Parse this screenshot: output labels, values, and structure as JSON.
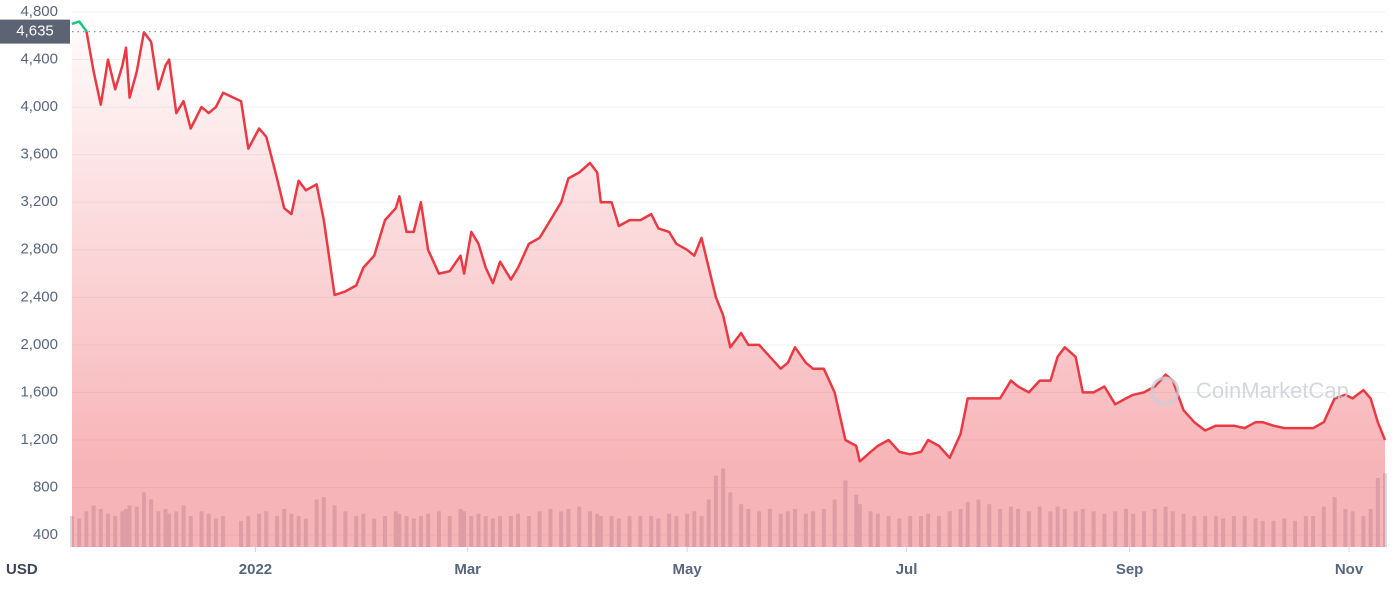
{
  "chart_data": {
    "type": "line",
    "currency_label": "USD",
    "watermark": "CoinMarketCap",
    "reference": {
      "value": 4635,
      "label": "4,635"
    },
    "xlim": [
      0,
      365
    ],
    "xticks": [
      {
        "value": 51,
        "label": "2022"
      },
      {
        "value": 110,
        "label": "Mar"
      },
      {
        "value": 171,
        "label": "May"
      },
      {
        "value": 232,
        "label": "Jul"
      },
      {
        "value": 294,
        "label": "Sep"
      },
      {
        "value": 355,
        "label": "Nov"
      }
    ],
    "ylim": [
      300,
      4800
    ],
    "yticks": [
      400,
      800,
      {
        "value": 1200,
        "label": "1,200"
      },
      {
        "value": 1600,
        "label": "1,600"
      },
      {
        "value": 2000,
        "label": "2,000"
      },
      {
        "value": 2400,
        "label": "2,400"
      },
      {
        "value": 2800,
        "label": "2,800"
      },
      {
        "value": 3200,
        "label": "3,200"
      },
      {
        "value": 3600,
        "label": "3,600"
      },
      {
        "value": 4000,
        "label": "4,000"
      },
      {
        "value": 4400,
        "label": "4,400"
      },
      {
        "value": 4800,
        "label": "4,800"
      }
    ],
    "grid": true,
    "color_below": "#ea3943",
    "color_above": "#16c784",
    "volume_color": "#d7dadf",
    "x": [
      0,
      2,
      4,
      6,
      8,
      10,
      12,
      14,
      15,
      16,
      18,
      20,
      22,
      24,
      26,
      27,
      29,
      31,
      33,
      36,
      38,
      40,
      42,
      47,
      49,
      52,
      54,
      57,
      59,
      61,
      63,
      65,
      68,
      70,
      73,
      76,
      79,
      81,
      84,
      87,
      90,
      91,
      93,
      95,
      97,
      99,
      102,
      105,
      108,
      109,
      111,
      113,
      115,
      117,
      119,
      122,
      124,
      127,
      130,
      133,
      136,
      138,
      141,
      144,
      146,
      147,
      150,
      152,
      155,
      158,
      161,
      163,
      166,
      168,
      171,
      173,
      175,
      177,
      179,
      181,
      183,
      186,
      188,
      191,
      194,
      197,
      199,
      201,
      204,
      206,
      209,
      212,
      215,
      218,
      219,
      222,
      224,
      227,
      230,
      233,
      236,
      238,
      241,
      244,
      247,
      249,
      252,
      255,
      258,
      261,
      263,
      266,
      269,
      272,
      274,
      276,
      279,
      281,
      284,
      287,
      290,
      293,
      295,
      298,
      301,
      304,
      306,
      309,
      312,
      315,
      318,
      320,
      323,
      326,
      329,
      331,
      334,
      337,
      340,
      343,
      345,
      348,
      351,
      354,
      356,
      359,
      361,
      363,
      365
    ],
    "values": [
      4700,
      4720,
      4640,
      4300,
      4020,
      4400,
      4150,
      4350,
      4500,
      4080,
      4300,
      4630,
      4550,
      4150,
      4350,
      4400,
      3950,
      4050,
      3820,
      4000,
      3950,
      4000,
      4120,
      4050,
      3650,
      3820,
      3750,
      3400,
      3150,
      3100,
      3380,
      3300,
      3350,
      3050,
      2420,
      2450,
      2500,
      2650,
      2750,
      3050,
      3150,
      3250,
      2950,
      2950,
      3200,
      2800,
      2600,
      2620,
      2750,
      2600,
      2950,
      2850,
      2650,
      2520,
      2700,
      2550,
      2650,
      2850,
      2900,
      3050,
      3200,
      3400,
      3450,
      3530,
      3450,
      3200,
      3200,
      3000,
      3050,
      3050,
      3100,
      2980,
      2950,
      2850,
      2800,
      2750,
      2900,
      2650,
      2400,
      2250,
      1980,
      2100,
      2000,
      2000,
      1900,
      1800,
      1850,
      1980,
      1850,
      1800,
      1800,
      1600,
      1200,
      1150,
      1020,
      1100,
      1150,
      1200,
      1100,
      1080,
      1100,
      1200,
      1150,
      1050,
      1250,
      1550,
      1550,
      1550,
      1550,
      1700,
      1650,
      1600,
      1700,
      1700,
      1900,
      1980,
      1900,
      1600,
      1600,
      1650,
      1500,
      1550,
      1580,
      1600,
      1650,
      1750,
      1700,
      1450,
      1350,
      1280,
      1320,
      1320,
      1320,
      1300,
      1350,
      1350,
      1320,
      1300,
      1300,
      1300,
      1300,
      1350,
      1550,
      1580,
      1550,
      1620,
      1550,
      1350,
      1200
    ],
    "volume": [
      560,
      540,
      600,
      650,
      620,
      580,
      560,
      600,
      620,
      650,
      640,
      760,
      700,
      600,
      620,
      580,
      600,
      650,
      560,
      600,
      580,
      540,
      560,
      520,
      560,
      580,
      600,
      560,
      620,
      580,
      560,
      540,
      700,
      720,
      650,
      600,
      560,
      580,
      540,
      560,
      600,
      580,
      560,
      540,
      560,
      580,
      600,
      560,
      620,
      600,
      560,
      580,
      560,
      540,
      560,
      560,
      580,
      560,
      600,
      620,
      600,
      620,
      640,
      600,
      580,
      560,
      560,
      540,
      560,
      560,
      560,
      540,
      580,
      560,
      580,
      600,
      560,
      700,
      900,
      960,
      760,
      660,
      620,
      600,
      620,
      580,
      600,
      620,
      580,
      600,
      620,
      700,
      860,
      740,
      660,
      600,
      580,
      560,
      540,
      560,
      560,
      580,
      560,
      600,
      620,
      680,
      700,
      660,
      620,
      640,
      620,
      600,
      640,
      600,
      640,
      620,
      600,
      620,
      600,
      580,
      600,
      620,
      580,
      600,
      620,
      640,
      600,
      580,
      560,
      560,
      560,
      540,
      560,
      560,
      540,
      520,
      520,
      540,
      520,
      560,
      560,
      640,
      720,
      620,
      600,
      560,
      620,
      880,
      920
    ]
  }
}
